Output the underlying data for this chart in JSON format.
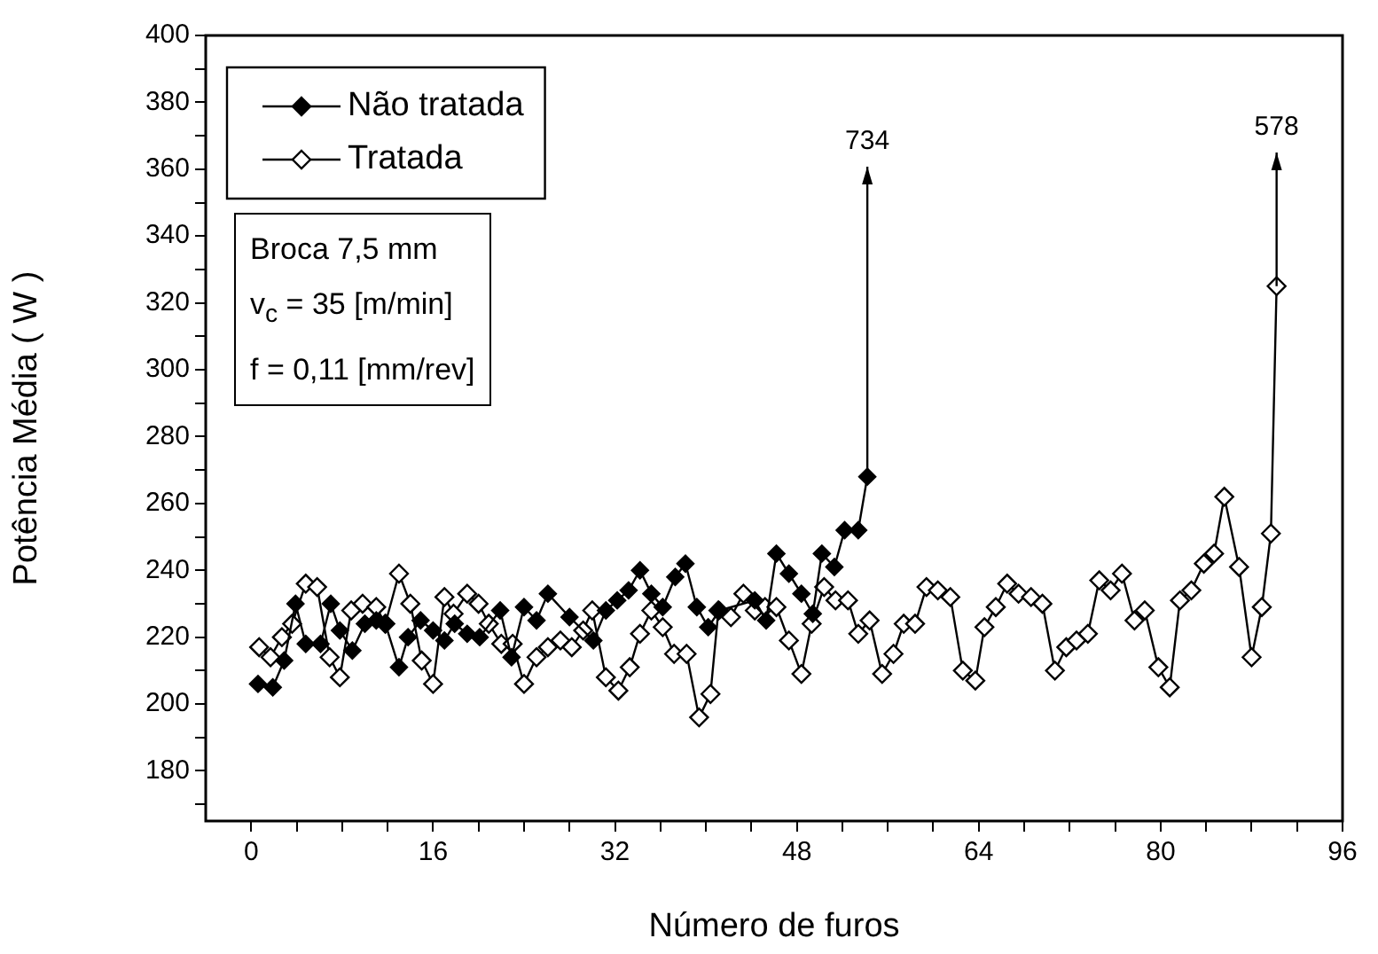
{
  "chart_data": {
    "type": "line",
    "xlabel": "Número de furos",
    "ylabel": "Potência Média ( W )",
    "xlim": [
      -4,
      96
    ],
    "xticks": [
      0,
      {
        "value": 4,
        "label": null
      },
      {
        "value": 8,
        "label": null
      },
      {
        "value": 12,
        "label": null
      },
      16,
      {
        "value": 20,
        "label": null
      },
      {
        "value": 24,
        "label": null
      },
      {
        "value": 28,
        "label": null
      },
      32,
      {
        "value": 36,
        "label": null
      },
      {
        "value": 40,
        "label": null
      },
      {
        "value": 44,
        "label": null
      },
      48,
      {
        "value": 52,
        "label": null
      },
      {
        "value": 56,
        "label": null
      },
      {
        "value": 60,
        "label": null
      },
      64,
      {
        "value": 68,
        "label": null
      },
      {
        "value": 72,
        "label": null
      },
      {
        "value": 76,
        "label": null
      },
      80,
      {
        "value": 84,
        "label": null
      },
      {
        "value": 88,
        "label": null
      },
      {
        "value": 92,
        "label": null
      },
      96
    ],
    "ylim": [
      165,
      400
    ],
    "yticks": [
      {
        "value": 170,
        "label": null
      },
      180,
      {
        "value": 190,
        "label": null
      },
      200,
      {
        "value": 210,
        "label": null
      },
      220,
      {
        "value": 230,
        "label": null
      },
      240,
      {
        "value": 250,
        "label": null
      },
      260,
      {
        "value": 270,
        "label": null
      },
      280,
      {
        "value": 290,
        "label": null
      },
      300,
      {
        "value": 310,
        "label": null
      },
      320,
      {
        "value": 330,
        "label": null
      },
      340,
      {
        "value": 350,
        "label": null
      },
      360,
      {
        "value": 370,
        "label": null
      },
      380,
      {
        "value": 390,
        "label": null
      },
      400
    ],
    "grid": false,
    "legend": "top left",
    "marker": "diamond",
    "line_style": "solid",
    "series": [
      {
        "name": "Não tratada",
        "color": "#000000",
        "x": [
          0.6,
          1.9,
          2.9,
          3.9,
          4.8,
          6.1,
          7,
          7.8,
          8.9,
          10,
          11,
          11.8,
          13,
          13.8,
          14.9,
          16,
          17,
          17.9,
          19,
          20.1,
          21.9,
          22.9,
          24,
          25.1,
          26.1,
          28,
          30.1,
          31.2,
          32.2,
          33.2,
          34.2,
          35.2,
          36.2,
          37.3,
          38.2,
          39.2,
          40.2,
          41.2,
          44.3,
          45.3,
          46.2,
          47.3,
          48.4,
          49.4,
          50.2,
          51.3,
          52.2,
          53.4,
          54.2
        ],
        "values": [
          206,
          205,
          213,
          230,
          218,
          218,
          230,
          222,
          216,
          224,
          225,
          224,
          211,
          220,
          225,
          222,
          219,
          224,
          221,
          220,
          228,
          214,
          229,
          225,
          233,
          226,
          219,
          228,
          231,
          234,
          240,
          233,
          229,
          238,
          242,
          229,
          223,
          228,
          231,
          225,
          245,
          239,
          233,
          227,
          245,
          241,
          252,
          252,
          268
        ]
      },
      {
        "name": "Tratada",
        "color": "#000000",
        "x": [
          0.7,
          1.7,
          2.7,
          3.6,
          4.8,
          5.8,
          6.9,
          7.8,
          8.8,
          9.8,
          11,
          11.8,
          13,
          14,
          15,
          16,
          17,
          17.8,
          19,
          20,
          20.9,
          22,
          23,
          24,
          25.1,
          26.1,
          27.2,
          28.2,
          29.2,
          30,
          31.2,
          32.3,
          33.3,
          34.2,
          35.2,
          36.2,
          37.2,
          38.3,
          39.4,
          40.4,
          41.1,
          42.2,
          43.3,
          44.3,
          45.2,
          46.2,
          47.3,
          48.4,
          49.3,
          50.4,
          51.4,
          52.5,
          53.4,
          54.4,
          55.5,
          56.5,
          57.4,
          58.4,
          59.4,
          60.4,
          61.5,
          62.6,
          63.7,
          64.5,
          65.5,
          66.5,
          67.5,
          68.6,
          69.6,
          70.7,
          71.7,
          72.6,
          73.6,
          74.6,
          75.6,
          76.6,
          77.7,
          78.6,
          79.8,
          80.8,
          81.7,
          82.7,
          83.8,
          84.7,
          85.6,
          86.9,
          88,
          88.9,
          89.7,
          90.2
        ],
        "values": [
          217,
          214,
          220,
          224,
          236,
          235,
          214,
          208,
          228,
          230,
          229,
          224,
          239,
          230,
          213,
          206,
          232,
          227,
          233,
          230,
          224,
          218,
          218,
          206,
          214,
          217,
          219,
          217,
          222,
          228,
          208,
          204,
          211,
          221,
          228,
          223,
          215,
          215,
          196,
          203,
          228,
          226,
          233,
          228,
          229,
          229,
          219,
          209,
          224,
          235,
          231,
          231,
          221,
          225,
          209,
          215,
          224,
          224,
          235,
          234,
          232,
          210,
          207,
          223,
          229,
          236,
          233,
          232,
          230,
          210,
          217,
          219,
          221,
          237,
          234,
          239,
          225,
          228,
          211,
          205,
          231,
          234,
          242,
          245,
          262,
          241,
          214,
          229,
          251,
          325
        ]
      }
    ],
    "annotations": [
      "734",
      "578",
      "Broca 7,5 mm",
      "v$_{c}$ = 35 [m/min]",
      "f = 0,11 [mm/rev]"
    ]
  }
}
